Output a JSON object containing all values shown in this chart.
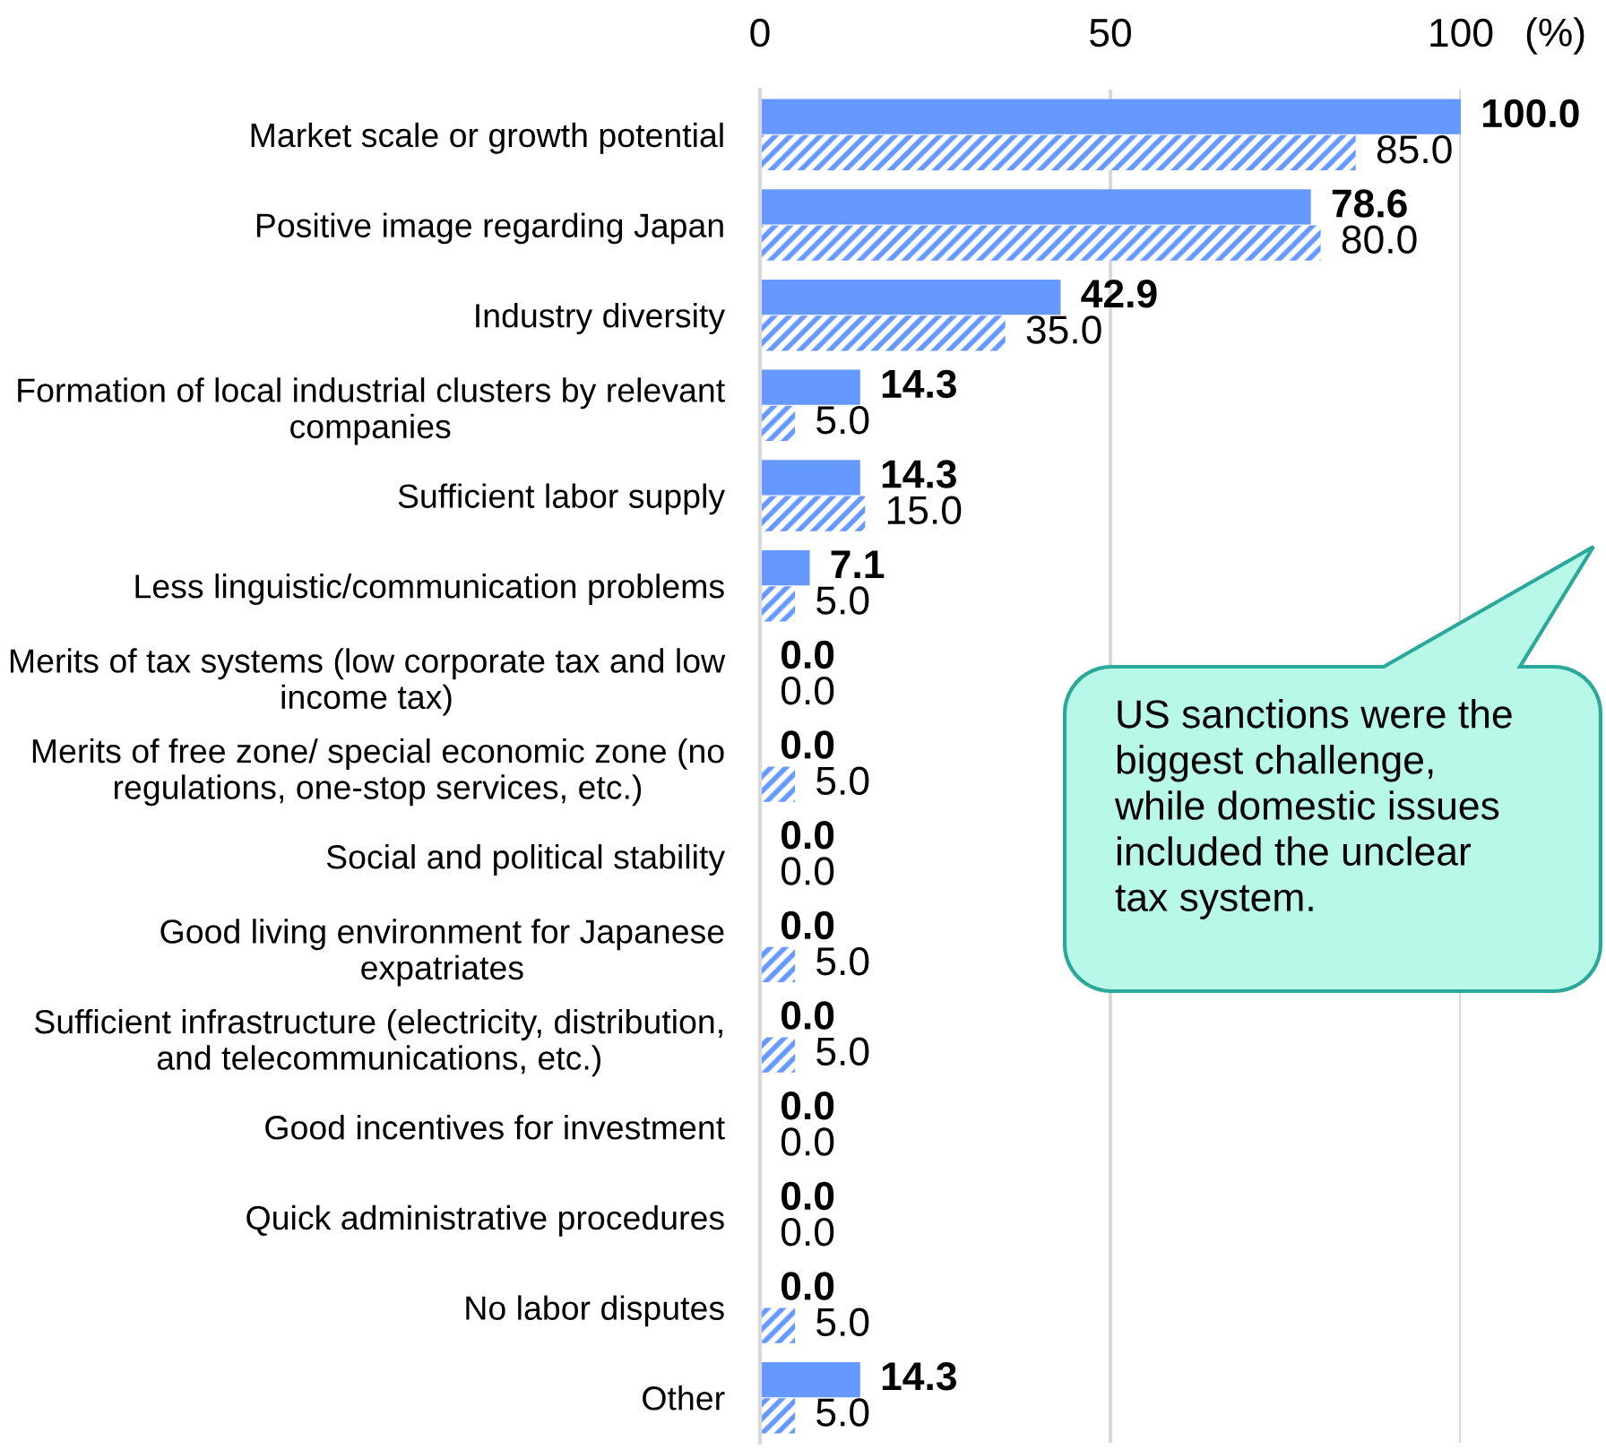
{
  "chart_data": {
    "type": "bar",
    "orientation": "horizontal",
    "categories": [
      "Market scale or growth potential",
      "Positive image regarding Japan",
      "Industry diversity",
      "Formation of local industrial clusters by relevant\ncompanies",
      "Sufficient labor supply",
      "Less linguistic/communication problems",
      "Merits of tax systems (low corporate tax and low\nincome tax)",
      "Merits of free zone/ special economic zone (no\nregulations, one-stop services, etc.)",
      "Social and political stability",
      "Good living environment for Japanese\nexpatriates",
      "Sufficient infrastructure (electricity, distribution,\nand telecommunications, etc.)",
      "Good incentives for investment",
      "Quick administrative procedures",
      "No labor disputes",
      "Other"
    ],
    "series": [
      {
        "color": "#6699ff",
        "values": [
          100,
          78.6,
          42.9,
          14.3,
          14.3,
          7.1,
          0,
          0,
          0,
          0,
          0,
          0,
          0,
          0,
          14.3
        ],
        "value_labels": [
          "100.0",
          "78.6",
          "42.9",
          "14.3",
          "14.3",
          "7.1",
          "0.0",
          "0.0",
          "0.0",
          "0.0",
          "0.0",
          "0.0",
          "0.0",
          "0.0",
          "14.3"
        ]
      },
      {
        "color": "#6699ff",
        "values": [
          85,
          80,
          35,
          5,
          15,
          5,
          0,
          5,
          0,
          5,
          5,
          0,
          0,
          5,
          5
        ],
        "value_labels": [
          "85.0",
          "80.0",
          "35.0",
          "5.0",
          "15.0",
          "5.0",
          "0.0",
          "5.0",
          "0.0",
          "5.0",
          "5.0",
          "0.0",
          "0.0",
          "5.0",
          "5.0"
        ]
      }
    ],
    "xlabel": "(%)",
    "xlim": [
      0,
      100
    ],
    "xticks": [
      0,
      50,
      100
    ],
    "grid": "x",
    "annotations": [
      "US sanctions were the\nbiggest challenge,\nwhile domestic issues\nincluded the unclear\ntax system."
    ]
  }
}
